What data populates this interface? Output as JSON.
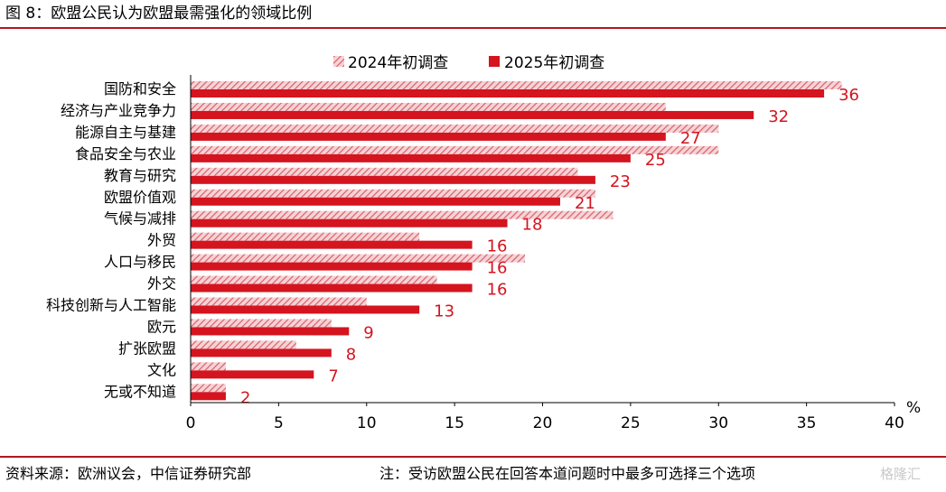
{
  "figure_title": "图 8：欧盟公民认为欧盟最需强化的领域比例",
  "source_text": "资料来源：欧洲议会，中信证券研究部",
  "note_text": "注：受访欧盟公民在回答本道问题时中最多可选择三个选项",
  "watermark_text": "格隆汇",
  "chart_data": {
    "type": "bar",
    "orientation": "horizontal",
    "categories": [
      "国防和安全",
      "经济与产业竞争力",
      "能源自主与基建",
      "食品安全与农业",
      "教育与研究",
      "欧盟价值观",
      "气候与减排",
      "外贸",
      "人口与移民",
      "外交",
      "科技创新与人工智能",
      "欧元",
      "扩张欧盟",
      "文化",
      "无或不知道"
    ],
    "series": [
      {
        "name": "2024年初调查",
        "values": [
          37,
          27,
          30,
          30,
          22,
          23,
          24,
          13,
          19,
          14,
          10,
          8,
          6,
          2,
          2
        ],
        "color": "#e8a6ab",
        "pattern": "hatched"
      },
      {
        "name": "2025年初调查",
        "values": [
          36,
          32,
          27,
          25,
          23,
          21,
          18,
          16,
          16,
          16,
          13,
          9,
          8,
          7,
          2
        ],
        "color": "#d4141f",
        "pattern": "solid"
      }
    ],
    "data_labels": [
      "36",
      "32",
      "27",
      "25",
      "23",
      "21",
      "18",
      "16",
      "16",
      "16",
      "13",
      "9",
      "8",
      "7",
      "2"
    ],
    "xlim": [
      0,
      40
    ],
    "xticks": [
      "0",
      "5",
      "10",
      "15",
      "20",
      "25",
      "30",
      "35",
      "40"
    ],
    "x_unit_label": "%",
    "legend_position": "top-center",
    "grid": false
  }
}
